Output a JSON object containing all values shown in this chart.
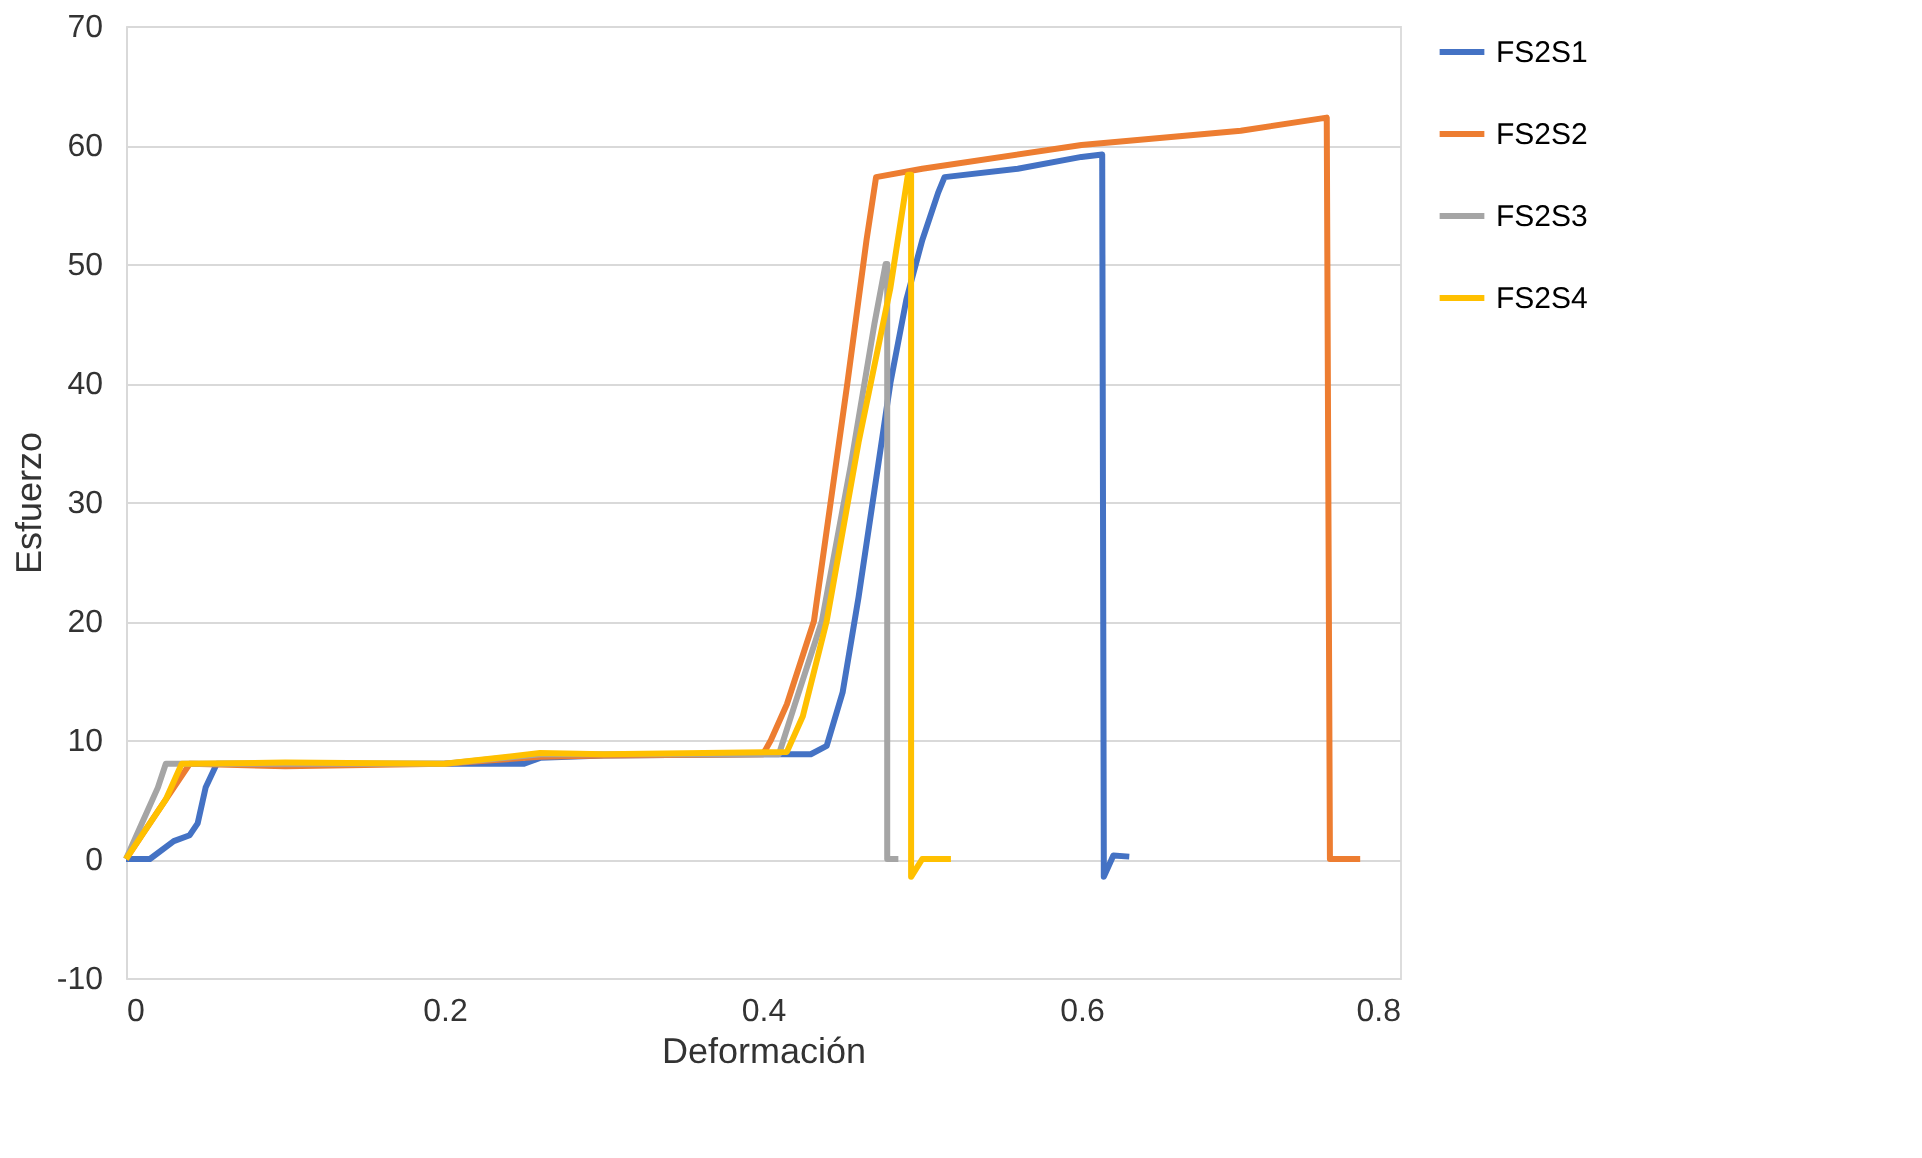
{
  "chart_data": {
    "type": "line",
    "xlabel": "Deformación",
    "ylabel": "Esfuerzo",
    "xlim": [
      0,
      0.8
    ],
    "xticks": [
      0,
      0.2,
      0.4,
      0.6,
      0.8
    ],
    "ylim": [
      -10,
      70
    ],
    "yticks": [
      -10,
      0,
      10,
      20,
      30,
      40,
      50,
      60,
      70
    ],
    "grid": "y",
    "legend": "right",
    "marker": "none",
    "line_style": "solid",
    "series": [
      {
        "name": "FS2S1",
        "color": "#4472c4",
        "x": [
          0,
          0.015,
          0.03,
          0.04,
          0.045,
          0.05,
          0.057,
          0.1,
          0.2,
          0.25,
          0.26,
          0.3,
          0.4,
          0.43,
          0.44,
          0.45,
          0.46,
          0.47,
          0.48,
          0.49,
          0.5,
          0.51,
          0.514,
          0.56,
          0.6,
          0.613,
          0.614,
          0.614,
          0.62,
          0.63
        ],
        "values": [
          0,
          0,
          1.5,
          2,
          3,
          6,
          8,
          8,
          8,
          8,
          8.5,
          8.7,
          8.8,
          8.8,
          9.5,
          14,
          22,
          31,
          40,
          47,
          52,
          56,
          57.3,
          58,
          59,
          59.2,
          0,
          -1.5,
          0.3,
          0.2
        ]
      },
      {
        "name": "FS2S2",
        "color": "#ed7d31",
        "x": [
          0,
          0.01,
          0.03,
          0.04,
          0.1,
          0.2,
          0.26,
          0.3,
          0.4,
          0.405,
          0.415,
          0.432,
          0.453,
          0.465,
          0.471,
          0.5,
          0.6,
          0.7,
          0.754,
          0.756,
          0.775
        ],
        "values": [
          0,
          2,
          6,
          8,
          7.8,
          8,
          8.6,
          8.7,
          8.8,
          10,
          13,
          20,
          40,
          52,
          57.3,
          58,
          60,
          61.2,
          62.3,
          0,
          0
        ]
      },
      {
        "name": "FS2S3",
        "color": "#a5a5a5",
        "x": [
          0,
          0.01,
          0.02,
          0.025,
          0.1,
          0.2,
          0.26,
          0.3,
          0.41,
          0.42,
          0.437,
          0.455,
          0.47,
          0.477,
          0.478,
          0.478,
          0.485
        ],
        "values": [
          0,
          3,
          6,
          8,
          8,
          8,
          8.8,
          8.8,
          8.8,
          13,
          20,
          33,
          45,
          50,
          50,
          0,
          0
        ]
      },
      {
        "name": "FS2S4",
        "color": "#ffc000",
        "x": [
          0,
          0.01,
          0.025,
          0.035,
          0.1,
          0.2,
          0.26,
          0.3,
          0.415,
          0.425,
          0.44,
          0.46,
          0.48,
          0.491,
          0.493,
          0.493,
          0.5,
          0.518
        ],
        "values": [
          0,
          2,
          5,
          8,
          8.1,
          8,
          8.9,
          8.8,
          9,
          12,
          20,
          35,
          48,
          57.5,
          57.5,
          -1.5,
          0,
          0
        ]
      }
    ]
  }
}
